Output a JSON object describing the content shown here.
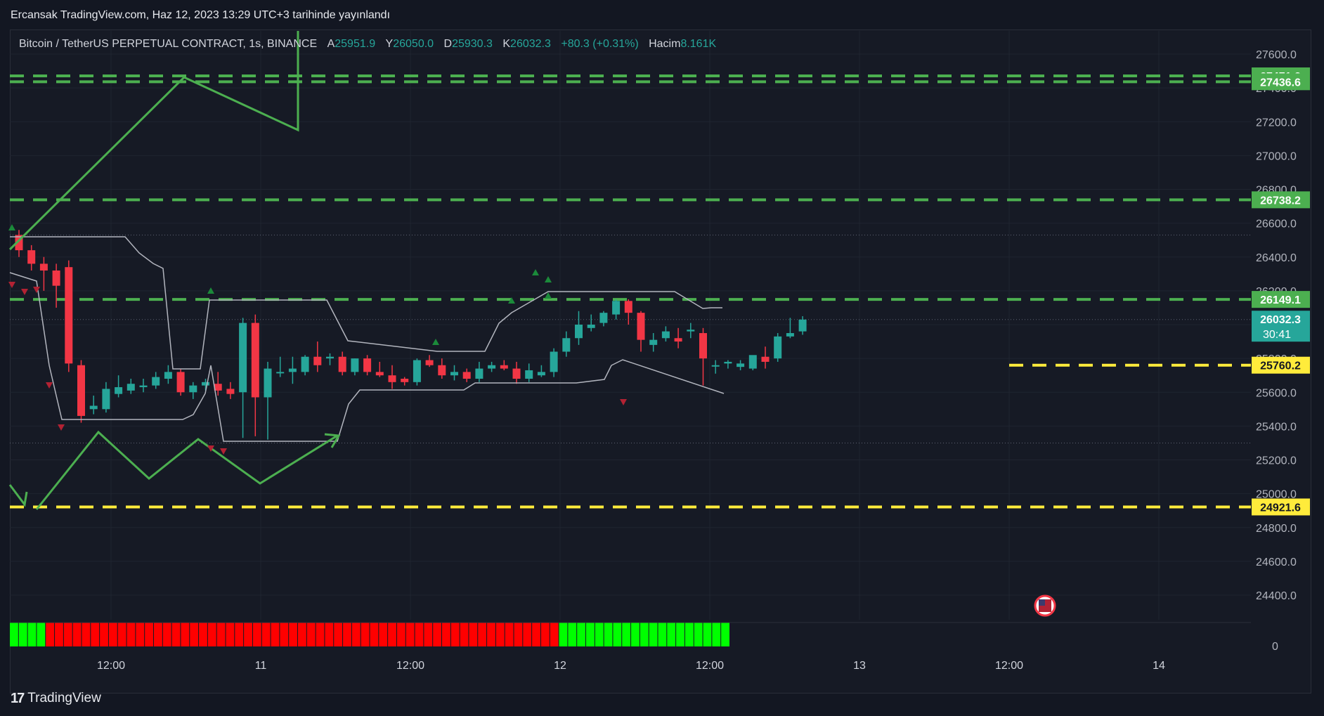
{
  "header": {
    "publisher_text": "Ercansak TradingView.com, Haz 12, 2023 13:29 UTC+3 tarihinde yayınlandı"
  },
  "legend": {
    "symbol": "Bitcoin / TetherUS PERPETUAL CONTRACT, 1s, BINANCE",
    "open_label": "A",
    "open": "25951.9",
    "high_label": "Y",
    "high": "26050.0",
    "low_label": "D",
    "low": "25930.3",
    "close_label": "K",
    "close": "26032.3",
    "change": "+80.3 (+0.31%)",
    "volume_label": "Hacim",
    "volume": "8.161K"
  },
  "footer": {
    "brand": "TradingView"
  },
  "colors": {
    "background": "#161a25",
    "up": "#26a69a",
    "down": "#f23645",
    "green_line": "#4caf50",
    "yellow_line": "#ffeb3b",
    "indicator_up": "#00ff00",
    "indicator_down": "#ff0000"
  },
  "chart_data": {
    "type": "candlestick",
    "y_axis_ticks": [
      "27600.0",
      "27400.0",
      "27200.0",
      "27000.0",
      "26800.0",
      "26600.0",
      "26400.0",
      "26200.0",
      "26000.0",
      "25800.0",
      "25600.0",
      "25400.0",
      "25200.0",
      "25000.0",
      "24800.0",
      "24600.0",
      "24400.0"
    ],
    "ylim": [
      24300,
      27650
    ],
    "x_axis_ticks": [
      "12:00",
      "11",
      "12:00",
      "12",
      "12:00",
      "13",
      "12:00",
      "14"
    ],
    "price_labels": [
      {
        "value": 27471.2,
        "text": "27471.2",
        "color": "#4caf50",
        "style": "dashed"
      },
      {
        "value": 27436.6,
        "text": "27436.6",
        "color": "#4caf50",
        "style": "dashed"
      },
      {
        "value": 26738.2,
        "text": "26738.2",
        "color": "#4caf50",
        "style": "dashed"
      },
      {
        "value": 26149.1,
        "text": "26149.1",
        "color": "#4caf50",
        "style": "dashed"
      },
      {
        "value": 25760.2,
        "text": "25760.2",
        "color": "#ffeb3b",
        "style": "dashed"
      },
      {
        "value": 24921.6,
        "text": "24921.6",
        "color": "#ffeb3b",
        "style": "dashed"
      }
    ],
    "current_price": {
      "value": 26032.3,
      "text": "26032.3",
      "countdown": "30:41"
    },
    "dotted_levels": [
      26530,
      26030,
      25300
    ],
    "candles": [
      [
        26530,
        26560,
        26400,
        26440
      ],
      [
        26440,
        26470,
        26320,
        26360
      ],
      [
        26360,
        26400,
        26200,
        26320
      ],
      [
        26320,
        26360,
        26100,
        26230
      ],
      [
        26340,
        26380,
        25720,
        25770
      ],
      [
        25760,
        25790,
        25420,
        25460
      ],
      [
        25500,
        25580,
        25470,
        25520
      ],
      [
        25500,
        25660,
        25480,
        25620
      ],
      [
        25590,
        25700,
        25570,
        25630
      ],
      [
        25610,
        25680,
        25590,
        25650
      ],
      [
        25630,
        25680,
        25600,
        25640
      ],
      [
        25640,
        25720,
        25620,
        25690
      ],
      [
        25680,
        25760,
        25650,
        25720
      ],
      [
        25720,
        25740,
        25580,
        25600
      ],
      [
        25600,
        25660,
        25560,
        25640
      ],
      [
        25640,
        25680,
        25610,
        25660
      ],
      [
        25650,
        25720,
        25580,
        25610
      ],
      [
        25620,
        25660,
        25560,
        25590
      ],
      [
        25600,
        26040,
        25330,
        26010
      ],
      [
        26010,
        26060,
        25340,
        25570
      ],
      [
        25570,
        25780,
        25320,
        25740
      ],
      [
        25720,
        25810,
        25690,
        25720
      ],
      [
        25720,
        25810,
        25650,
        25740
      ],
      [
        25720,
        25820,
        25700,
        25810
      ],
      [
        25810,
        25900,
        25720,
        25760
      ],
      [
        25800,
        25830,
        25760,
        25810
      ],
      [
        25810,
        25840,
        25700,
        25720
      ],
      [
        25720,
        25800,
        25700,
        25800
      ],
      [
        25800,
        25820,
        25700,
        25720
      ],
      [
        25720,
        25780,
        25690,
        25700
      ],
      [
        25700,
        25760,
        25620,
        25660
      ],
      [
        25680,
        25690,
        25640,
        25660
      ],
      [
        25660,
        25800,
        25640,
        25790
      ],
      [
        25790,
        25820,
        25750,
        25760
      ],
      [
        25760,
        25800,
        25680,
        25700
      ],
      [
        25700,
        25760,
        25670,
        25720
      ],
      [
        25720,
        25740,
        25660,
        25680
      ],
      [
        25680,
        25780,
        25660,
        25740
      ],
      [
        25740,
        25780,
        25720,
        25760
      ],
      [
        25760,
        25790,
        25730,
        25740
      ],
      [
        25740,
        25780,
        25650,
        25680
      ],
      [
        25680,
        25770,
        25660,
        25730
      ],
      [
        25700,
        25760,
        25690,
        25720
      ],
      [
        25720,
        25860,
        25690,
        25840
      ],
      [
        25840,
        25960,
        25810,
        25920
      ],
      [
        25920,
        26080,
        25880,
        26000
      ],
      [
        25980,
        26060,
        25960,
        26000
      ],
      [
        26010,
        26080,
        25990,
        26070
      ],
      [
        26060,
        26150,
        26030,
        26140
      ],
      [
        26140,
        26150,
        26000,
        26070
      ],
      [
        26070,
        26080,
        25840,
        25910
      ],
      [
        25880,
        25950,
        25840,
        25910
      ],
      [
        25920,
        25990,
        25900,
        25960
      ],
      [
        25920,
        25980,
        25860,
        25900
      ],
      [
        25960,
        26010,
        25920,
        25970
      ],
      [
        25950,
        25980,
        25640,
        25800
      ],
      [
        25760,
        25790,
        25710,
        25760
      ],
      [
        25770,
        25790,
        25740,
        25780
      ],
      [
        25750,
        25790,
        25730,
        25770
      ],
      [
        25740,
        25810,
        25730,
        25820
      ],
      [
        25810,
        25870,
        25740,
        25780
      ],
      [
        25800,
        25950,
        25780,
        25930
      ],
      [
        25930,
        26040,
        25920,
        25950
      ],
      [
        25960,
        26050,
        25940,
        26030
      ]
    ],
    "indicator_strip": {
      "zero_label": "0",
      "states": "4 green, 57 red, 19 green"
    }
  }
}
